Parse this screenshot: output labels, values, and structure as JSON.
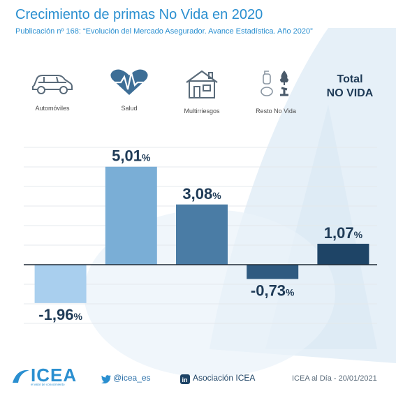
{
  "header": {
    "title": "Crecimiento de primas No Vida en 2020",
    "subtitle": "Publicación nº 168: “Evolución del Mercado Asegurador. Avance Estadística. Año 2020”"
  },
  "categories_icons": [
    {
      "label": "Automóviles",
      "icon": "car-icon"
    },
    {
      "label": "Salud",
      "icon": "heart-pulse-icon"
    },
    {
      "label": "Multirriesgos",
      "icon": "house-icon"
    },
    {
      "label": "Resto No Vida",
      "icon": "misc-insurance-icon"
    }
  ],
  "total": {
    "line1": "Total",
    "line2": "NO VIDA"
  },
  "chart_data": {
    "type": "bar",
    "title": "Crecimiento de primas No Vida en 2020",
    "categories": [
      "Automóviles",
      "Salud",
      "Multirriesgos",
      "Resto No Vida",
      "Total NO VIDA"
    ],
    "values": [
      -1.96,
      5.01,
      3.08,
      -0.73,
      1.07
    ],
    "value_labels": [
      "-1,96",
      "5,01",
      "3,08",
      "-0,73",
      "1,07"
    ],
    "unit": "%",
    "ylim": [
      -3.0,
      6.0
    ],
    "grid": true,
    "colors": [
      "#a9cfee",
      "#7aaed6",
      "#4a7ca5",
      "#2f5a80",
      "#1e4466"
    ]
  },
  "footer": {
    "logo": "ICEA",
    "logo_tagline": "el valor de conocimiento",
    "twitter": "@icea_es",
    "linkedin": "Asociación ICEA",
    "credit": "ICEA al Día - 20/01/2021"
  }
}
